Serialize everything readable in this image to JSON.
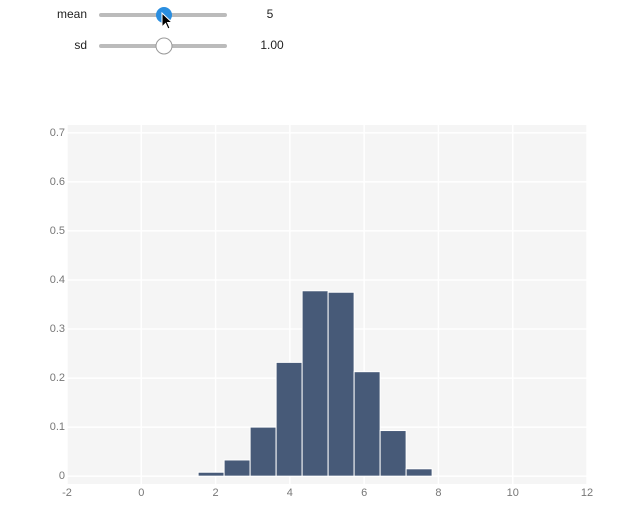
{
  "controls": [
    {
      "label": "mean",
      "value": 5
    },
    {
      "label": "sd",
      "value": 1,
      "value_label": "1.00"
    }
  ],
  "chart_data": {
    "type": "histogram",
    "bins": [
      1.53,
      2.23,
      2.93,
      3.63,
      4.33,
      5.03,
      5.73,
      6.43,
      7.13,
      7.83
    ],
    "values": [
      0.008,
      0.033,
      0.1,
      0.232,
      0.378,
      0.375,
      0.213,
      0.093,
      0.015
    ],
    "color": "#475a78",
    "xlim": [
      -2,
      12
    ],
    "xticks": [
      -2,
      0,
      2,
      4,
      6,
      8,
      10,
      12
    ],
    "ylim": [
      -0.016,
      0.716
    ],
    "yticks": [
      0,
      0.1,
      0.2,
      0.3,
      0.4,
      0.5,
      0.6,
      0.7
    ],
    "grid": true
  }
}
